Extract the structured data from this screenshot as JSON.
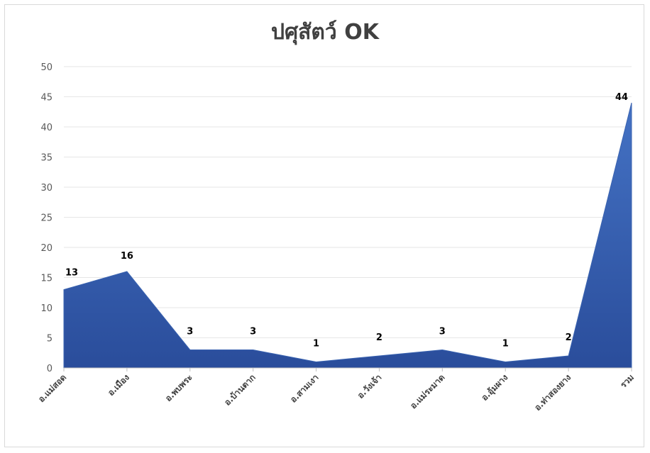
{
  "chart_data": {
    "type": "area",
    "title": "ปศุสัตว์ OK",
    "categories": [
      "อ.แม่สอด",
      "อ.เมือง",
      "อ.พบพระ",
      "อ.บ้านตาก",
      "อ.สามเงา",
      "อ.วังเจ้า",
      "อ.แม่ระมาด",
      "อ.อุ้มผาง",
      "อ.ท่าสองยาง",
      "รวม"
    ],
    "values": [
      13,
      16,
      3,
      3,
      1,
      2,
      3,
      1,
      2,
      44
    ],
    "ylim": [
      0,
      50
    ],
    "yticks": [
      0,
      5,
      10,
      15,
      20,
      25,
      30,
      35,
      40,
      45,
      50
    ],
    "grid": true,
    "legend": "none",
    "colors": {
      "fill_top": "#4472c4",
      "fill_bottom": "#2a4d9b",
      "grid": "#e6e6e6",
      "axis": "#bfbfbf"
    }
  }
}
